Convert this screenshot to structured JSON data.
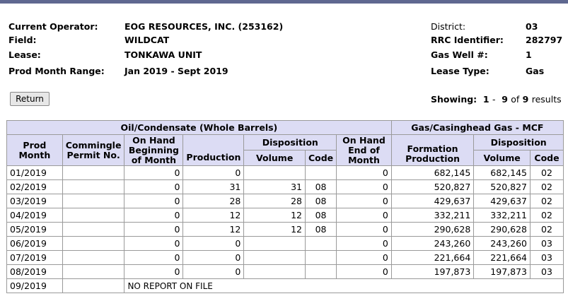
{
  "lease_info": {
    "left": [
      {
        "label": "Current Operator:",
        "value": "EOG RESOURCES, INC. (253162)"
      },
      {
        "label": "Field:",
        "value": "WILDCAT"
      },
      {
        "label": "Lease:",
        "value": "TONKAWA UNIT"
      },
      {
        "label": "Prod Month Range:",
        "value": "Jan 2019 - Sept 2019"
      }
    ],
    "right": [
      {
        "label": "District:",
        "value": "03"
      },
      {
        "label": "RRC Identifier:",
        "value": "282797"
      },
      {
        "label": "Gas Well #:",
        "value": "1"
      },
      {
        "label": "Lease Type:",
        "value": "Gas"
      }
    ]
  },
  "toolbar": {
    "return_label": "Return",
    "showing_label": "Showing:",
    "range_from": "1",
    "range_sep": "-",
    "range_to": "9",
    "of_word": "of",
    "total": "9",
    "results_word": "results"
  },
  "table": {
    "group_oil": "Oil/Condensate (Whole Barrels)",
    "group_gas": "Gas/Casinghead Gas - MCF",
    "col_prod_month": "Prod Month",
    "col_commingle": "Commingle Permit No.",
    "col_on_hand_begin": "On Hand Beginning of Month",
    "col_production": "Production",
    "col_disposition": "Disposition",
    "col_volume": "Volume",
    "col_code": "Code",
    "col_on_hand_end": "On Hand End of Month",
    "col_formation_production": "Formation Production",
    "col_gas_disposition": "Disposition",
    "col_gas_volume": "Volume",
    "col_gas_code": "Code",
    "rows": [
      {
        "month": "01/2019",
        "commingle": "",
        "begin": "0",
        "production": "0",
        "disp_volume": "",
        "disp_code": "",
        "end": "0",
        "formation": "682,145",
        "gas_volume": "682,145",
        "gas_code": "02"
      },
      {
        "month": "02/2019",
        "commingle": "",
        "begin": "0",
        "production": "31",
        "disp_volume": "31",
        "disp_code": "08",
        "end": "0",
        "formation": "520,827",
        "gas_volume": "520,827",
        "gas_code": "02"
      },
      {
        "month": "03/2019",
        "commingle": "",
        "begin": "0",
        "production": "28",
        "disp_volume": "28",
        "disp_code": "08",
        "end": "0",
        "formation": "429,637",
        "gas_volume": "429,637",
        "gas_code": "02"
      },
      {
        "month": "04/2019",
        "commingle": "",
        "begin": "0",
        "production": "12",
        "disp_volume": "12",
        "disp_code": "08",
        "end": "0",
        "formation": "332,211",
        "gas_volume": "332,211",
        "gas_code": "02"
      },
      {
        "month": "05/2019",
        "commingle": "",
        "begin": "0",
        "production": "12",
        "disp_volume": "12",
        "disp_code": "08",
        "end": "0",
        "formation": "290,628",
        "gas_volume": "290,628",
        "gas_code": "02"
      },
      {
        "month": "06/2019",
        "commingle": "",
        "begin": "0",
        "production": "0",
        "disp_volume": "",
        "disp_code": "",
        "end": "0",
        "formation": "243,260",
        "gas_volume": "243,260",
        "gas_code": "03"
      },
      {
        "month": "07/2019",
        "commingle": "",
        "begin": "0",
        "production": "0",
        "disp_volume": "",
        "disp_code": "",
        "end": "0",
        "formation": "221,664",
        "gas_volume": "221,664",
        "gas_code": "03"
      },
      {
        "month": "08/2019",
        "commingle": "",
        "begin": "0",
        "production": "0",
        "disp_volume": "",
        "disp_code": "",
        "end": "0",
        "formation": "197,873",
        "gas_volume": "197,873",
        "gas_code": "03"
      }
    ],
    "no_report_row": {
      "month": "09/2019",
      "commingle": "",
      "message": "NO REPORT ON FILE"
    }
  },
  "colors": {
    "header_bg": "#dcdcf4",
    "top_bar": "#5f6890",
    "border": "#9a9a9a"
  }
}
